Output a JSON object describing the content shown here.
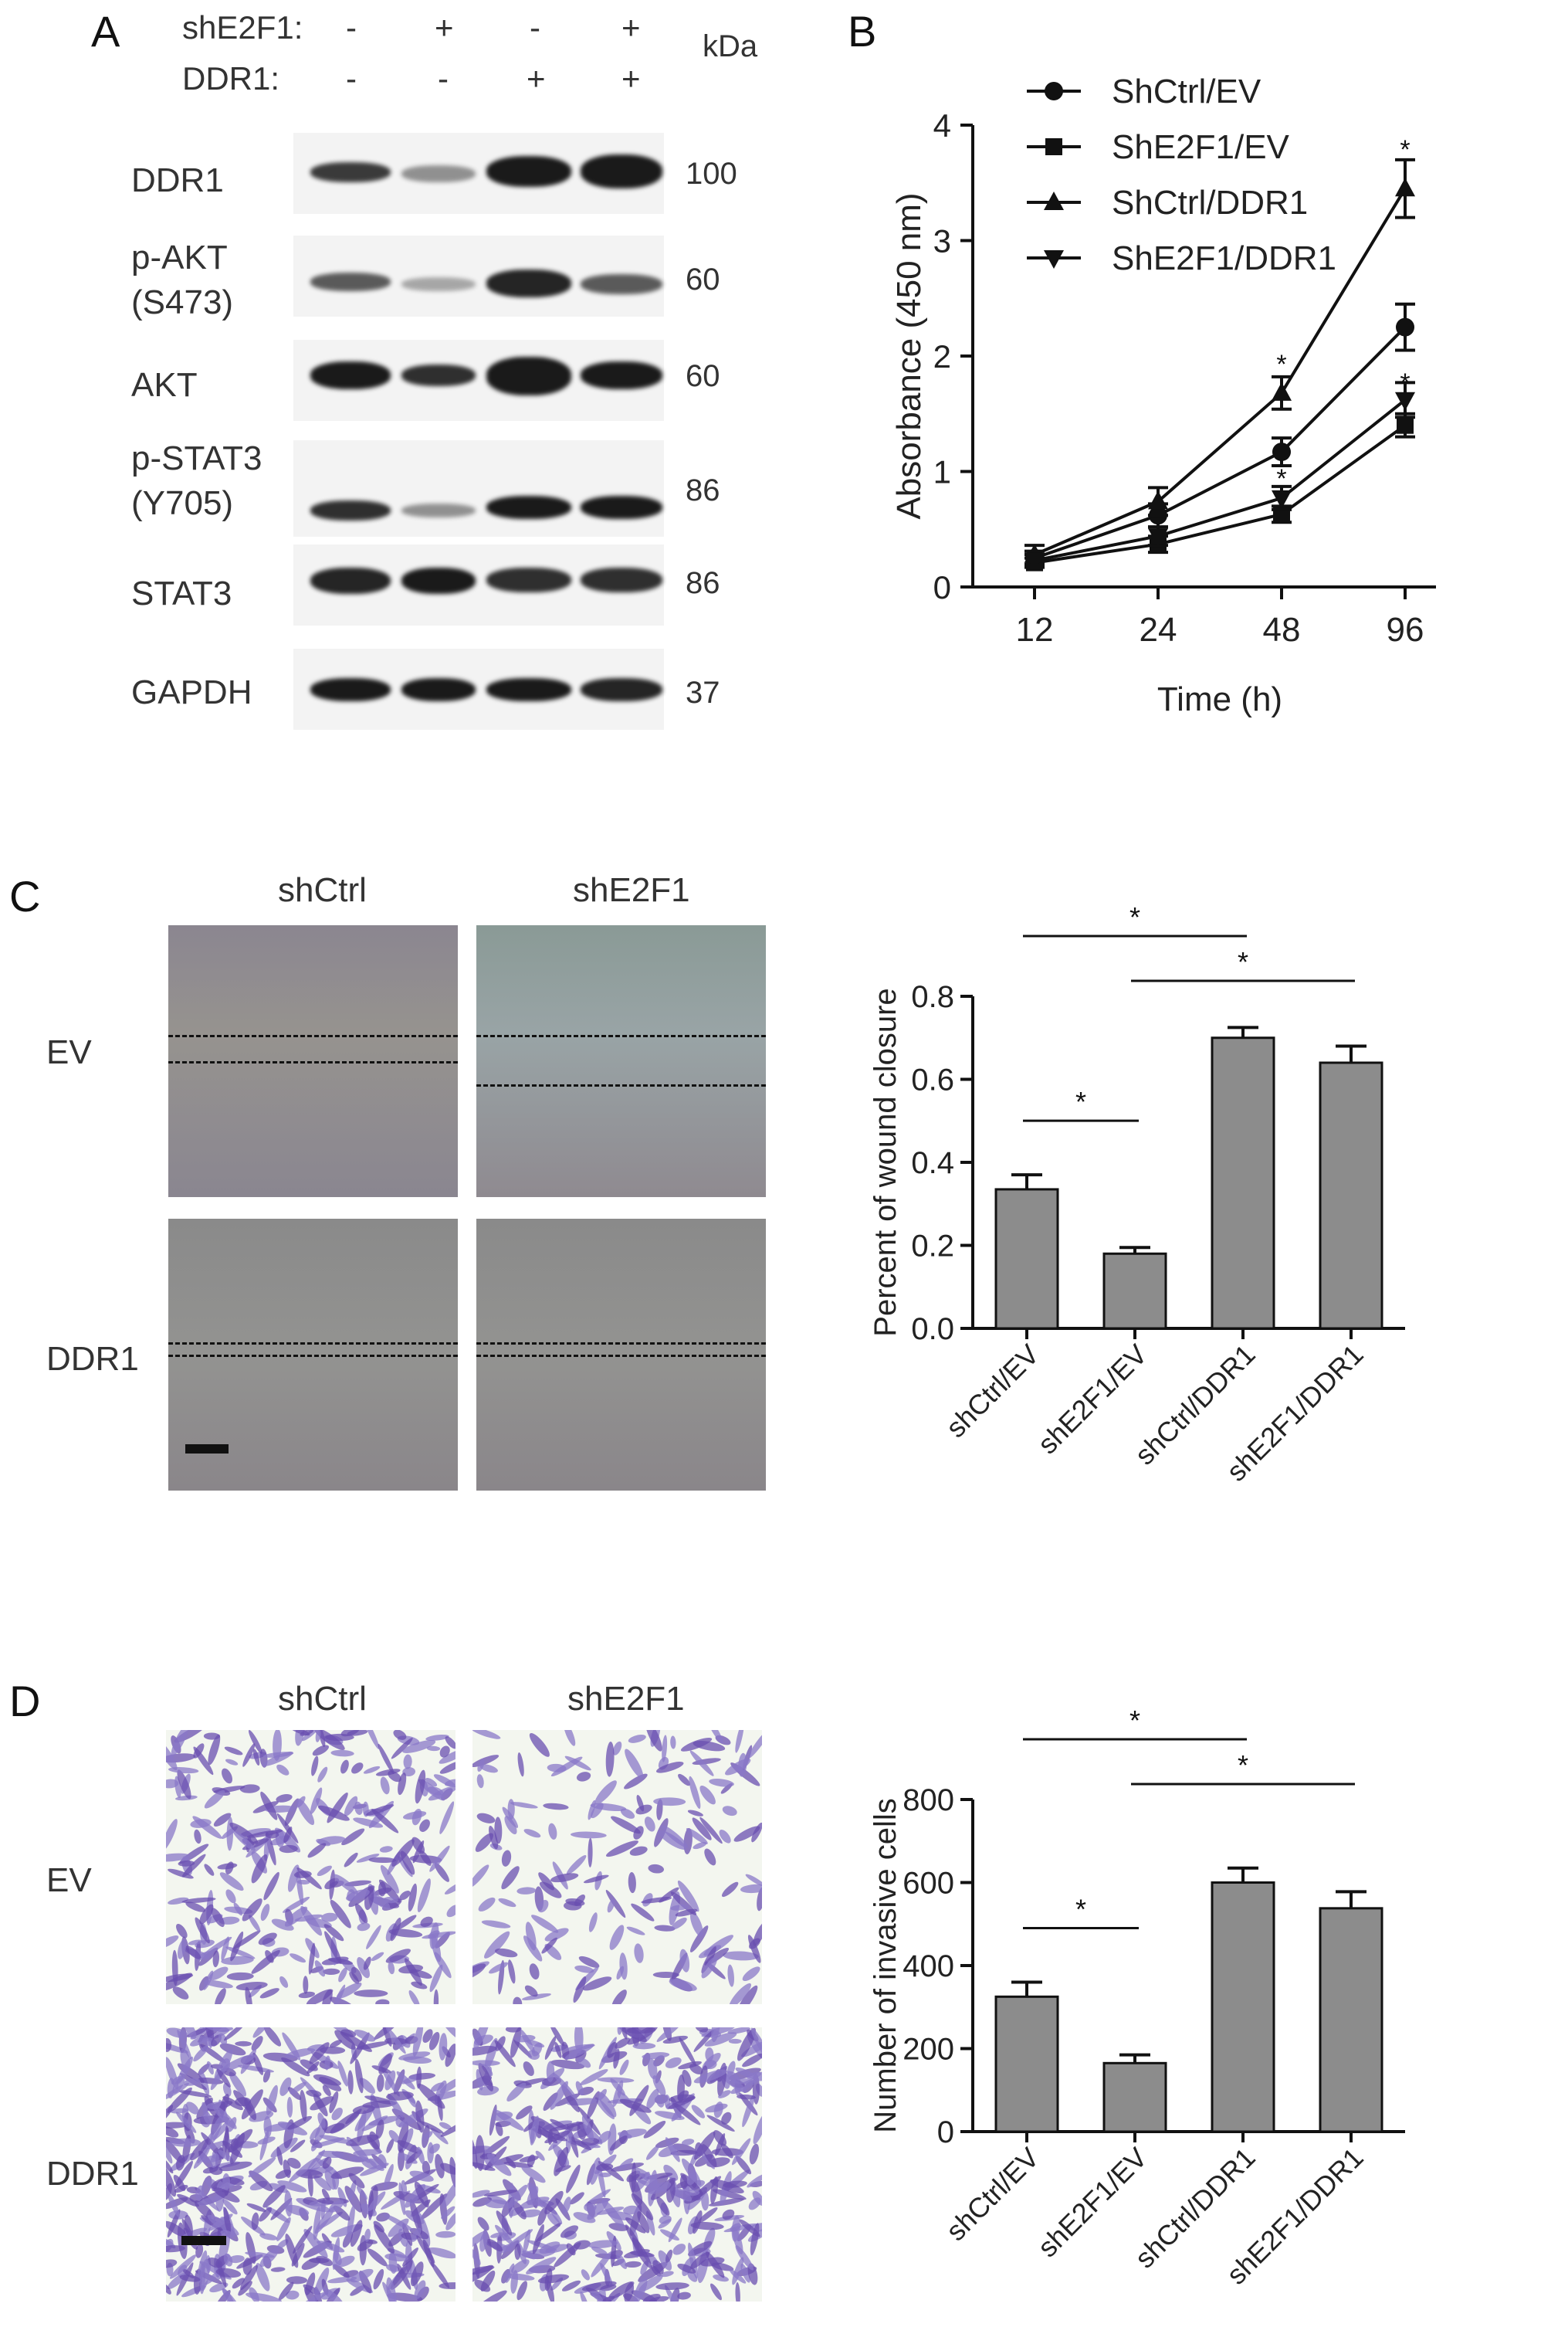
{
  "panelA": {
    "label": "A",
    "row1_label": "shE2F1:",
    "row2_label": "DDR1:",
    "kda": "kDa",
    "row1_signs": [
      "-",
      "+",
      "-",
      "+"
    ],
    "row2_signs": [
      "-",
      "-",
      "+",
      "+"
    ],
    "bands": [
      {
        "name": "DDR1",
        "kda": "100"
      },
      {
        "name": "p-AKT\n(S473)",
        "kda": "60"
      },
      {
        "name": "AKT",
        "kda": "60"
      },
      {
        "name": "p-STAT3\n(Y705)",
        "kda": "86"
      },
      {
        "name": "STAT3",
        "kda": "86"
      },
      {
        "name": "GAPDH",
        "kda": "37"
      }
    ]
  },
  "panelB": {
    "label": "B",
    "chart_data": {
      "type": "line",
      "x": [
        "12",
        "24",
        "48",
        "96"
      ],
      "xlabel": "Time (h)",
      "ylabel": "Absorbance (450 nm)",
      "ylim": [
        0,
        4
      ],
      "yticks": [
        "0",
        "1",
        "2",
        "3",
        "4"
      ],
      "series": [
        {
          "name": "ShCtrl/EV",
          "marker": "circle",
          "values": [
            0.25,
            0.62,
            1.17,
            2.25
          ],
          "errors": [
            0.06,
            0.1,
            0.12,
            0.2
          ]
        },
        {
          "name": "ShE2F1/EV",
          "marker": "square",
          "values": [
            0.21,
            0.37,
            0.63,
            1.4
          ],
          "errors": [
            0.04,
            0.07,
            0.07,
            0.1
          ]
        },
        {
          "name": "ShCtrl/DDR1",
          "marker": "triangle-up",
          "values": [
            0.28,
            0.74,
            1.68,
            3.45
          ],
          "errors": [
            0.08,
            0.12,
            0.14,
            0.25
          ]
        },
        {
          "name": "ShE2F1/DDR1",
          "marker": "triangle-down",
          "values": [
            0.23,
            0.44,
            0.77,
            1.62
          ],
          "errors": [
            0.05,
            0.08,
            0.1,
            0.15
          ]
        }
      ],
      "annotations": [
        {
          "text": "*",
          "x": "48",
          "y": 1.96
        },
        {
          "text": "*",
          "x": "96",
          "y": 3.82
        },
        {
          "text": "*",
          "x": "48",
          "y": 0.97
        },
        {
          "text": "*",
          "x": "96",
          "y": 1.8
        }
      ],
      "legend": "top-left"
    }
  },
  "panelC": {
    "label": "C",
    "col1": "shCtrl",
    "col2": "shE2F1",
    "row1": "EV",
    "row2": "DDR1",
    "chart_data": {
      "type": "bar",
      "categories": [
        "shCtrl/EV",
        "shE2F1/EV",
        "shCtrl/DDR1",
        "shE2F1/DDR1"
      ],
      "values": [
        0.335,
        0.18,
        0.7,
        0.64
      ],
      "errors": [
        0.035,
        0.015,
        0.025,
        0.04
      ],
      "ylabel": "Percent of wound closure",
      "ylim": [
        0,
        0.8
      ],
      "yticks": [
        "0.0",
        "0.2",
        "0.4",
        "0.6",
        "0.8"
      ],
      "significance": [
        "*",
        "*",
        "*"
      ]
    }
  },
  "panelD": {
    "label": "D",
    "col1": "shCtrl",
    "col2": "shE2F1",
    "row1": "EV",
    "row2": "DDR1",
    "chart_data": {
      "type": "bar",
      "categories": [
        "shCtrl/EV",
        "shE2F1/EV",
        "shCtrl/DDR1",
        "shE2F1/DDR1"
      ],
      "values": [
        325,
        165,
        600,
        538
      ],
      "errors": [
        35,
        20,
        35,
        40
      ],
      "ylabel": "Number of invasive cells",
      "ylim": [
        0,
        800
      ],
      "yticks": [
        "0",
        "200",
        "400",
        "600",
        "800"
      ],
      "significance": [
        "*",
        "*",
        "*"
      ]
    }
  }
}
